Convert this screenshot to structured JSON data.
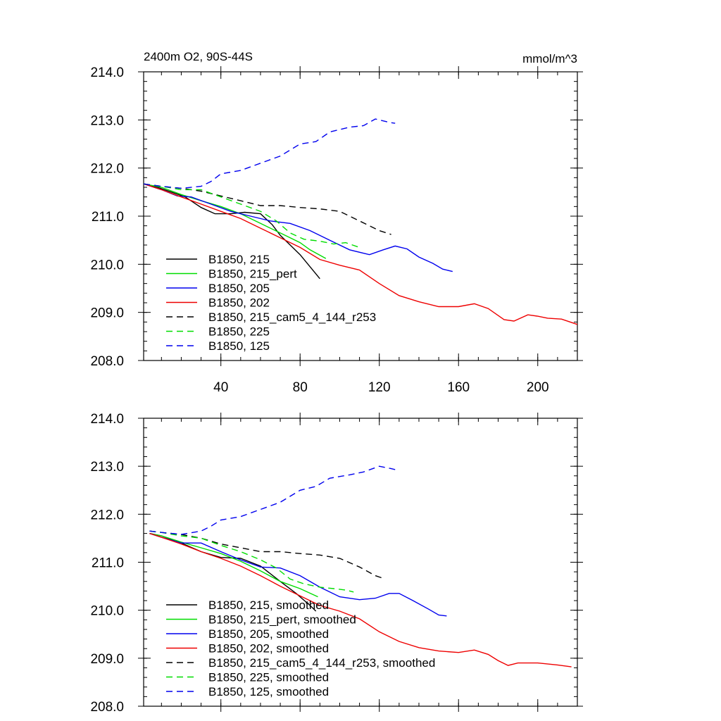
{
  "chart_data": [
    {
      "type": "line",
      "title": "2400m O2, 90S-44S",
      "units": "mmol/m^3",
      "xlim": [
        1,
        220
      ],
      "ylim": [
        208.0,
        214.0
      ],
      "xticks": [
        40,
        80,
        120,
        160,
        200
      ],
      "xtick_labels": [
        "40",
        "80",
        "120",
        "160",
        "200"
      ],
      "yticks": [
        208,
        209,
        210,
        211,
        212,
        213,
        214
      ],
      "ytick_labels": [
        "208.0",
        "209.0",
        "210.0",
        "211.0",
        "212.0",
        "213.0",
        "214.0"
      ],
      "grid": false,
      "legend_position": "bottom-left",
      "series": [
        {
          "name": "B1850, 215",
          "color": "#000000",
          "dash": "solid",
          "points": [
            [
              1,
              211.67
            ],
            [
              8,
              211.6
            ],
            [
              15,
              211.5
            ],
            [
              22,
              211.4
            ],
            [
              30,
              211.18
            ],
            [
              37,
              211.05
            ],
            [
              45,
              211.05
            ],
            [
              52,
              211.08
            ],
            [
              60,
              211.05
            ],
            [
              66,
              210.82
            ],
            [
              70,
              210.6
            ],
            [
              75,
              210.4
            ],
            [
              80,
              210.2
            ],
            [
              85,
              209.95
            ],
            [
              90,
              209.7
            ]
          ]
        },
        {
          "name": "B1850, 215_pert",
          "color": "#00dd00",
          "dash": "solid",
          "points": [
            [
              1,
              211.67
            ],
            [
              10,
              211.6
            ],
            [
              20,
              211.45
            ],
            [
              30,
              211.32
            ],
            [
              40,
              211.2
            ],
            [
              50,
              211.05
            ],
            [
              60,
              210.85
            ],
            [
              70,
              210.65
            ],
            [
              80,
              210.45
            ],
            [
              85,
              210.3
            ],
            [
              93,
              210.12
            ]
          ]
        },
        {
          "name": "B1850, 205",
          "color": "#0000ee",
          "dash": "solid",
          "points": [
            [
              1,
              211.67
            ],
            [
              10,
              211.55
            ],
            [
              18,
              211.42
            ],
            [
              25,
              211.4
            ],
            [
              35,
              211.25
            ],
            [
              45,
              211.1
            ],
            [
              55,
              211.0
            ],
            [
              65,
              210.9
            ],
            [
              75,
              210.85
            ],
            [
              85,
              210.7
            ],
            [
              95,
              210.5
            ],
            [
              105,
              210.3
            ],
            [
              115,
              210.2
            ],
            [
              122,
              210.3
            ],
            [
              128,
              210.38
            ],
            [
              134,
              210.32
            ],
            [
              140,
              210.15
            ],
            [
              147,
              210.02
            ],
            [
              152,
              209.9
            ],
            [
              157,
              209.85
            ]
          ]
        },
        {
          "name": "B1850, 202",
          "color": "#ee0000",
          "dash": "solid",
          "points": [
            [
              1,
              211.67
            ],
            [
              10,
              211.55
            ],
            [
              20,
              211.4
            ],
            [
              30,
              211.25
            ],
            [
              40,
              211.1
            ],
            [
              50,
              210.95
            ],
            [
              60,
              210.75
            ],
            [
              70,
              210.55
            ],
            [
              80,
              210.35
            ],
            [
              90,
              210.1
            ],
            [
              100,
              209.98
            ],
            [
              110,
              209.88
            ],
            [
              120,
              209.6
            ],
            [
              130,
              209.35
            ],
            [
              140,
              209.22
            ],
            [
              150,
              209.12
            ],
            [
              160,
              209.12
            ],
            [
              168,
              209.18
            ],
            [
              175,
              209.08
            ],
            [
              183,
              208.85
            ],
            [
              188,
              208.82
            ],
            [
              195,
              208.95
            ],
            [
              200,
              208.92
            ],
            [
              205,
              208.88
            ],
            [
              212,
              208.86
            ],
            [
              220,
              208.75
            ]
          ]
        },
        {
          "name": "B1850, 215_cam5_4_144_r253",
          "color": "#000000",
          "dash": "dashed",
          "points": [
            [
              1,
              211.67
            ],
            [
              10,
              211.62
            ],
            [
              20,
              211.58
            ],
            [
              30,
              211.52
            ],
            [
              40,
              211.42
            ],
            [
              50,
              211.32
            ],
            [
              60,
              211.22
            ],
            [
              70,
              211.22
            ],
            [
              80,
              211.18
            ],
            [
              90,
              211.15
            ],
            [
              100,
              211.1
            ],
            [
              110,
              210.9
            ],
            [
              120,
              210.7
            ],
            [
              126,
              210.62
            ]
          ]
        },
        {
          "name": "B1850, 225",
          "color": "#00dd00",
          "dash": "dashed",
          "points": [
            [
              1,
              211.67
            ],
            [
              10,
              211.62
            ],
            [
              20,
              211.55
            ],
            [
              30,
              211.55
            ],
            [
              40,
              211.4
            ],
            [
              50,
              211.25
            ],
            [
              60,
              211.1
            ],
            [
              68,
              210.9
            ],
            [
              75,
              210.65
            ],
            [
              82,
              210.52
            ],
            [
              90,
              210.48
            ],
            [
              97,
              210.42
            ],
            [
              103,
              210.45
            ],
            [
              110,
              210.35
            ]
          ]
        },
        {
          "name": "B1850, 125",
          "color": "#0000ee",
          "dash": "dashed",
          "points": [
            [
              1,
              211.67
            ],
            [
              10,
              211.62
            ],
            [
              20,
              211.58
            ],
            [
              30,
              211.62
            ],
            [
              35,
              211.72
            ],
            [
              40,
              211.88
            ],
            [
              50,
              211.95
            ],
            [
              60,
              212.1
            ],
            [
              70,
              212.25
            ],
            [
              80,
              212.5
            ],
            [
              88,
              212.55
            ],
            [
              95,
              212.75
            ],
            [
              105,
              212.85
            ],
            [
              112,
              212.88
            ],
            [
              118,
              213.02
            ],
            [
              125,
              212.95
            ],
            [
              128,
              212.93
            ]
          ]
        }
      ]
    },
    {
      "type": "line",
      "xlim": [
        1,
        220
      ],
      "ylim": [
        208.0,
        214.0
      ],
      "xticks": [
        40,
        80,
        120,
        160,
        200
      ],
      "yticks": [
        208,
        209,
        210,
        211,
        212,
        213,
        214
      ],
      "ytick_labels": [
        "208.0",
        "209.0",
        "210.0",
        "211.0",
        "212.0",
        "213.0",
        "214.0"
      ],
      "grid": false,
      "legend_position": "bottom-left",
      "series": [
        {
          "name": "B1850, 215, smoothed",
          "color": "#000000",
          "dash": "solid",
          "points": [
            [
              4,
              211.6
            ],
            [
              10,
              211.55
            ],
            [
              20,
              211.4
            ],
            [
              30,
              211.22
            ],
            [
              40,
              211.1
            ],
            [
              50,
              211.08
            ],
            [
              60,
              210.92
            ],
            [
              70,
              210.6
            ],
            [
              78,
              210.35
            ],
            [
              85,
              210.1
            ],
            [
              88,
              209.98
            ]
          ]
        },
        {
          "name": "B1850, 215_pert, smoothed",
          "color": "#00dd00",
          "dash": "solid",
          "points": [
            [
              4,
              211.6
            ],
            [
              10,
              211.55
            ],
            [
              20,
              211.42
            ],
            [
              30,
              211.3
            ],
            [
              40,
              211.18
            ],
            [
              50,
              211.02
            ],
            [
              60,
              210.82
            ],
            [
              70,
              210.6
            ],
            [
              80,
              210.45
            ],
            [
              89,
              210.28
            ]
          ]
        },
        {
          "name": "B1850, 205, smoothed",
          "color": "#0000ee",
          "dash": "solid",
          "points": [
            [
              4,
              211.6
            ],
            [
              10,
              211.52
            ],
            [
              20,
              211.4
            ],
            [
              30,
              211.4
            ],
            [
              40,
              211.22
            ],
            [
              50,
              211.05
            ],
            [
              60,
              210.9
            ],
            [
              70,
              210.88
            ],
            [
              80,
              210.72
            ],
            [
              90,
              210.48
            ],
            [
              100,
              210.28
            ],
            [
              110,
              210.22
            ],
            [
              118,
              210.25
            ],
            [
              125,
              210.35
            ],
            [
              130,
              210.35
            ],
            [
              137,
              210.2
            ],
            [
              145,
              210.02
            ],
            [
              150,
              209.9
            ],
            [
              154,
              209.88
            ]
          ]
        },
        {
          "name": "B1850, 202, smoothed",
          "color": "#ee0000",
          "dash": "solid",
          "points": [
            [
              4,
              211.6
            ],
            [
              10,
              211.52
            ],
            [
              20,
              211.38
            ],
            [
              30,
              211.22
            ],
            [
              40,
              211.08
            ],
            [
              50,
              210.92
            ],
            [
              60,
              210.72
            ],
            [
              70,
              210.5
            ],
            [
              80,
              210.3
            ],
            [
              90,
              210.1
            ],
            [
              100,
              209.98
            ],
            [
              110,
              209.82
            ],
            [
              120,
              209.55
            ],
            [
              130,
              209.35
            ],
            [
              140,
              209.22
            ],
            [
              150,
              209.15
            ],
            [
              160,
              209.12
            ],
            [
              168,
              209.17
            ],
            [
              175,
              209.08
            ],
            [
              180,
              208.95
            ],
            [
              185,
              208.85
            ],
            [
              190,
              208.9
            ],
            [
              200,
              208.9
            ],
            [
              210,
              208.86
            ],
            [
              217,
              208.82
            ]
          ]
        },
        {
          "name": "B1850, 215_cam5_4_144_r253, smoothed",
          "color": "#000000",
          "dash": "dashed",
          "points": [
            [
              4,
              211.65
            ],
            [
              10,
              211.62
            ],
            [
              20,
              211.58
            ],
            [
              30,
              211.5
            ],
            [
              40,
              211.38
            ],
            [
              50,
              211.3
            ],
            [
              60,
              211.22
            ],
            [
              70,
              211.22
            ],
            [
              80,
              211.18
            ],
            [
              90,
              211.15
            ],
            [
              100,
              211.08
            ],
            [
              110,
              210.9
            ],
            [
              118,
              210.72
            ],
            [
              123,
              210.65
            ]
          ]
        },
        {
          "name": "B1850, 225, smoothed",
          "color": "#00dd00",
          "dash": "dashed",
          "points": [
            [
              4,
              211.65
            ],
            [
              10,
              211.62
            ],
            [
              20,
              211.55
            ],
            [
              30,
              211.5
            ],
            [
              40,
              211.35
            ],
            [
              50,
              211.22
            ],
            [
              60,
              211.05
            ],
            [
              68,
              210.88
            ],
            [
              75,
              210.65
            ],
            [
              82,
              210.55
            ],
            [
              90,
              210.48
            ],
            [
              97,
              210.45
            ],
            [
              103,
              210.42
            ],
            [
              107,
              210.38
            ]
          ]
        },
        {
          "name": "B1850, 125, smoothed",
          "color": "#0000ee",
          "dash": "dashed",
          "points": [
            [
              4,
              211.65
            ],
            [
              10,
              211.62
            ],
            [
              20,
              211.58
            ],
            [
              30,
              211.65
            ],
            [
              35,
              211.75
            ],
            [
              40,
              211.88
            ],
            [
              50,
              211.95
            ],
            [
              60,
              212.1
            ],
            [
              70,
              212.25
            ],
            [
              80,
              212.5
            ],
            [
              88,
              212.58
            ],
            [
              95,
              212.75
            ],
            [
              105,
              212.82
            ],
            [
              112,
              212.88
            ],
            [
              120,
              213.0
            ],
            [
              126,
              212.95
            ],
            [
              128,
              212.93
            ]
          ]
        }
      ]
    }
  ]
}
